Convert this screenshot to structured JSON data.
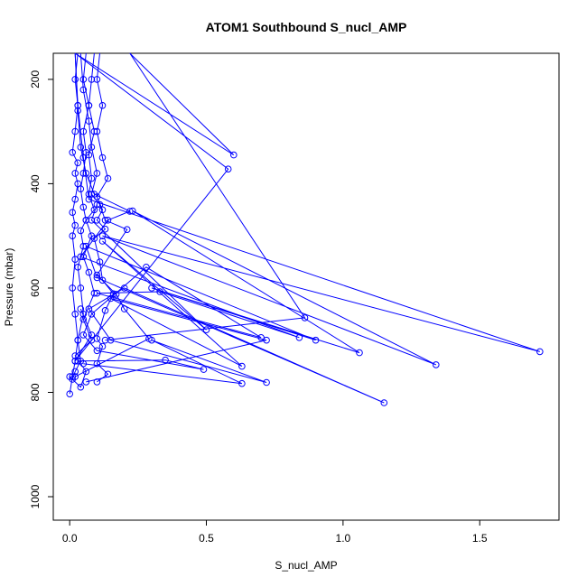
{
  "chart_data": {
    "type": "line",
    "title": "ATOM1 Southbound S_nucl_AMP",
    "xlabel": "S_nucl_AMP",
    "ylabel": "Pressure (mbar)",
    "xlim": [
      -0.06,
      1.79
    ],
    "ylim": [
      1045,
      150
    ],
    "y_reversed": true,
    "x_ticks": [
      0.0,
      0.5,
      1.0,
      1.5
    ],
    "x_tick_labels": [
      "0.0",
      "0.5",
      "1.0",
      "1.5"
    ],
    "y_ticks": [
      200,
      400,
      600,
      800,
      1000
    ],
    "y_tick_labels": [
      "200",
      "400",
      "600",
      "800",
      "1000"
    ],
    "grid": false,
    "legend": "none",
    "color": "#0000ff",
    "marker": "open-circle",
    "series": [
      {
        "values": [
          [
            0.0,
            803
          ],
          [
            0.01,
            770
          ],
          [
            0.02,
            740
          ],
          [
            0.03,
            700
          ],
          [
            0.02,
            650
          ],
          [
            0.01,
            600
          ],
          [
            0.02,
            545
          ],
          [
            0.01,
            500
          ],
          [
            0.02,
            480
          ],
          [
            0.01,
            455
          ],
          [
            0.02,
            430
          ],
          [
            0.03,
            400
          ],
          [
            0.02,
            380
          ],
          [
            0.03,
            360
          ],
          [
            0.01,
            340
          ],
          [
            0.02,
            300
          ],
          [
            0.03,
            250
          ],
          [
            0.02,
            200
          ],
          [
            0.03,
            150
          ]
        ]
      },
      {
        "values": [
          [
            0.01,
            775
          ],
          [
            0.02,
            760
          ],
          [
            0.04,
            740
          ],
          [
            0.03,
            700
          ],
          [
            0.05,
            650
          ],
          [
            0.04,
            600
          ],
          [
            0.03,
            560
          ],
          [
            0.05,
            520
          ],
          [
            0.04,
            490
          ],
          [
            0.06,
            470
          ],
          [
            0.05,
            445
          ],
          [
            0.04,
            410
          ],
          [
            0.05,
            380
          ],
          [
            0.06,
            340
          ],
          [
            0.05,
            300
          ],
          [
            0.07,
            250
          ],
          [
            0.05,
            200
          ],
          [
            0.06,
            150
          ]
        ]
      },
      {
        "values": [
          [
            0.0,
            770
          ],
          [
            0.04,
            790
          ],
          [
            0.06,
            760
          ],
          [
            0.02,
            730
          ],
          [
            0.08,
            700
          ],
          [
            0.05,
            660
          ],
          [
            0.09,
            610
          ],
          [
            0.07,
            570
          ],
          [
            0.05,
            540
          ],
          [
            0.08,
            500
          ],
          [
            0.06,
            470
          ],
          [
            0.09,
            450
          ],
          [
            0.07,
            420
          ],
          [
            0.08,
            390
          ],
          [
            0.07,
            345
          ],
          [
            0.09,
            300
          ],
          [
            0.07,
            250
          ],
          [
            0.08,
            200
          ],
          [
            0.09,
            150
          ]
        ]
      },
      {
        "values": [
          [
            0.1,
            780
          ],
          [
            0.14,
            765
          ],
          [
            0.1,
            745
          ],
          [
            0.12,
            712
          ],
          [
            0.1,
            697
          ],
          [
            0.13,
            643
          ],
          [
            0.16,
            611
          ],
          [
            0.12,
            585
          ],
          [
            0.11,
            550
          ],
          [
            0.09,
            505
          ],
          [
            0.13,
            487
          ],
          [
            0.1,
            470
          ],
          [
            0.12,
            450
          ],
          [
            0.1,
            425
          ],
          [
            0.14,
            390
          ],
          [
            0.12,
            350
          ],
          [
            0.1,
            300
          ],
          [
            0.12,
            250
          ],
          [
            0.1,
            200
          ],
          [
            0.11,
            150
          ]
        ]
      },
      {
        "values": [
          [
            0.02,
            770
          ],
          [
            0.29,
            697
          ],
          [
            0.2,
            640
          ],
          [
            0.17,
            612
          ],
          [
            0.1,
            575
          ],
          [
            0.21,
            488
          ],
          [
            0.13,
            470
          ],
          [
            0.11,
            440
          ],
          [
            0.08,
            420
          ],
          [
            0.1,
            380
          ],
          [
            0.08,
            330
          ],
          [
            0.07,
            280
          ],
          [
            0.05,
            220
          ],
          [
            0.04,
            150
          ]
        ]
      },
      {
        "values": [
          [
            0.03,
            740
          ],
          [
            0.35,
            738
          ],
          [
            0.49,
            756
          ],
          [
            0.1,
            720
          ],
          [
            0.05,
            690
          ],
          [
            0.08,
            650
          ],
          [
            0.28,
            560
          ],
          [
            0.7,
            695
          ],
          [
            0.1,
            610
          ],
          [
            0.33,
            607
          ],
          [
            0.84,
            695
          ],
          [
            0.04,
            540
          ],
          [
            0.14,
            470
          ],
          [
            0.22,
            453
          ],
          [
            0.09,
            420
          ],
          [
            0.06,
            380
          ],
          [
            0.04,
            330
          ],
          [
            0.03,
            260
          ],
          [
            0.02,
            150
          ]
        ]
      },
      {
        "values": [
          [
            0.05,
            745
          ],
          [
            0.63,
            783
          ],
          [
            0.3,
            700
          ],
          [
            0.72,
            781
          ],
          [
            0.15,
            700
          ],
          [
            0.07,
            640
          ],
          [
            0.2,
            600
          ],
          [
            1.15,
            820
          ],
          [
            0.1,
            580
          ],
          [
            0.06,
            520
          ],
          [
            0.9,
            700
          ],
          [
            0.3,
            600
          ],
          [
            1.06,
            724
          ],
          [
            0.23,
            452
          ],
          [
            1.34,
            747
          ],
          [
            0.12,
            500
          ],
          [
            1.72,
            722
          ],
          [
            0.07,
            430
          ],
          [
            0.05,
            350
          ],
          [
            0.03,
            250
          ],
          [
            0.02,
            150
          ]
        ]
      },
      {
        "values": [
          [
            0.13,
            700
          ],
          [
            0.86,
            657
          ],
          [
            0.22,
            150
          ],
          [
            0.6,
            345
          ],
          [
            0.02,
            150
          ],
          [
            0.58,
            372
          ],
          [
            0.02,
            740
          ],
          [
            0.08,
            690
          ],
          [
            0.04,
            640
          ]
        ]
      },
      {
        "values": [
          [
            0.06,
            780
          ],
          [
            0.72,
            700
          ],
          [
            0.15,
            620
          ],
          [
            0.63,
            750
          ],
          [
            0.12,
            510
          ],
          [
            0.5,
            680
          ],
          [
            0.08,
            470
          ],
          [
            0.1,
            440
          ]
        ]
      }
    ]
  }
}
